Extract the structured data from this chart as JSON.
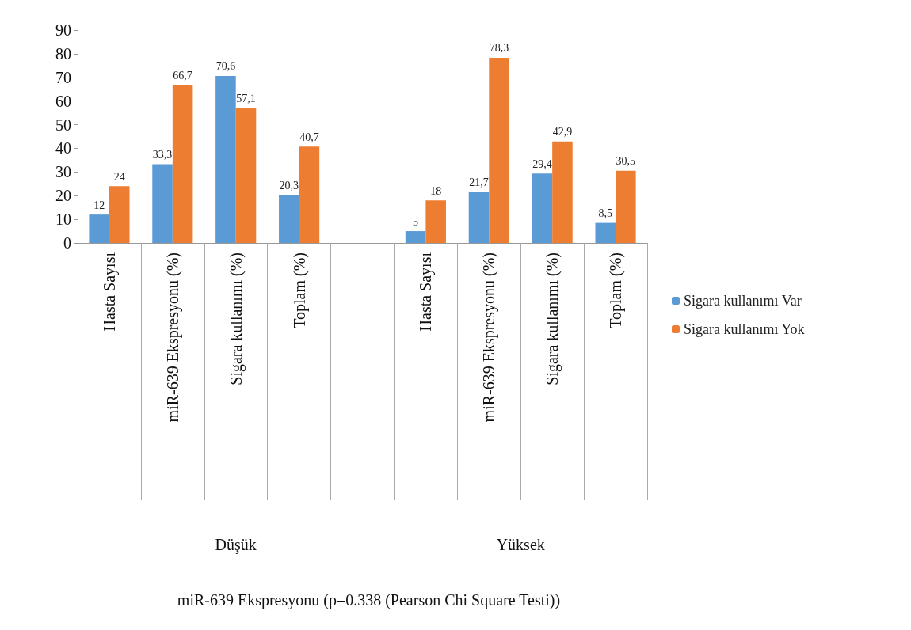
{
  "chart_data": {
    "type": "bar",
    "categories": [
      "Hasta Sayısı",
      "miR-639 Ekspresyonu (%)",
      "Sigara kullanımı (%)",
      "Toplam (%)",
      null,
      "Hasta Sayısı",
      "miR-639 Ekspresyonu (%)",
      "Sigara kullanımı (%)",
      "Toplam (%)"
    ],
    "series": [
      {
        "name": "Sigara kullanımı Var",
        "color": "#5b9bd5",
        "values": [
          12,
          33.3,
          70.6,
          20.3,
          null,
          5,
          21.7,
          29.4,
          8.5
        ],
        "value_labels": [
          "12",
          "33,3",
          "70,6",
          "20,3",
          null,
          "5",
          "21,7",
          "29,4",
          "8,5"
        ]
      },
      {
        "name": "Sigara kullanımı Yok",
        "color": "#ed7d31",
        "values": [
          24,
          66.7,
          57.1,
          40.7,
          null,
          18,
          78.3,
          42.9,
          30.5
        ],
        "value_labels": [
          "24",
          "66,7",
          "57,1",
          "40,7",
          null,
          "18",
          "78,3",
          "42,9",
          "30,5"
        ]
      }
    ],
    "ylim": [
      0,
      90
    ],
    "yticks": [
      0,
      10,
      20,
      30,
      40,
      50,
      60,
      70,
      80,
      90
    ],
    "annotations": [
      "Düşük",
      "Yüksek",
      "miR-639 Ekspresyonu (p=0.338 (Pearson Chi Square Testi))"
    ],
    "grid": false,
    "legend": "right"
  }
}
